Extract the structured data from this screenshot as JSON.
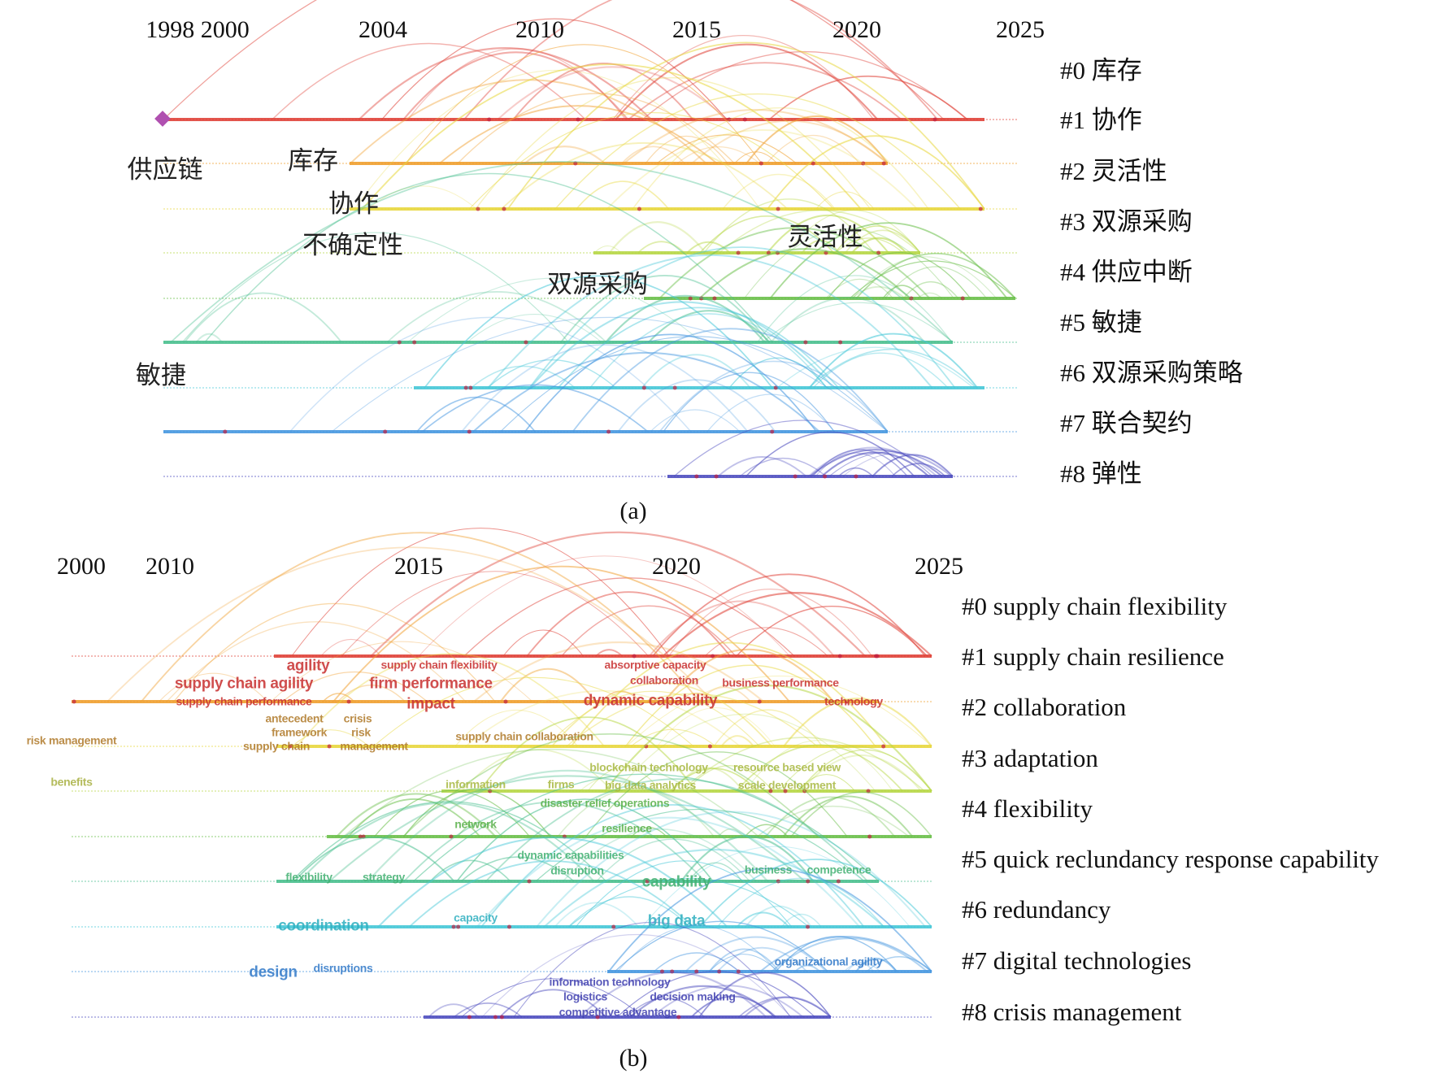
{
  "colors": [
    "#e0443a",
    "#f0a030",
    "#e8d840",
    "#b8d848",
    "#6cc04c",
    "#4cc090",
    "#48c8d8",
    "#4898e0",
    "#5050c0"
  ],
  "panel_a": {
    "caption": "(a)",
    "years": [
      "1998 2000",
      "2004",
      "2010",
      "2015",
      "2020",
      "2025"
    ],
    "clusters": [
      "#0 库存",
      "#1 协作",
      "#2 灵活性",
      "#3 双源采购",
      "#4 供应中断",
      "#5 敏捷",
      "#6 双源采购策略",
      "#7 联合契约",
      "#8 弹性"
    ],
    "keywords": [
      "供应链",
      "库存",
      "协作",
      "不确定性",
      "灵活性",
      "双源采购",
      "敏捷"
    ]
  },
  "panel_b": {
    "caption": "(b)",
    "years": [
      "2000",
      "2010",
      "2015",
      "2020",
      "2025"
    ],
    "clusters": [
      "#0 supply chain flexibility",
      "#1 supply chain resilience",
      "#2 collaboration",
      "#3 adaptation",
      "#4 flexibility",
      "#5 quick reclundancy response capability",
      "#6 redundancy",
      "#7 digital technologies",
      "#8 crisis management"
    ],
    "keywords": [
      "agility",
      "supply chain flexibility",
      "absorptive capacity",
      "collaboration",
      "supply chain agility",
      "firm performance",
      "supply chain performance",
      "impact",
      "dynamic capability",
      "business performance",
      "technology",
      "antecedent",
      "crisis",
      "framework",
      "risk",
      "supply chain",
      "management",
      "risk management",
      "supply chain collaboration",
      "benefits",
      "blockchain technology",
      "resource based view",
      "information",
      "firms",
      "big data analytics",
      "scale development",
      "disaster relief operations",
      "network",
      "resilience",
      "dynamic capabilities",
      "disruption",
      "flexibility",
      "strategy",
      "capability",
      "business",
      "competence",
      "coordination",
      "capacity",
      "big data",
      "design",
      "disruptions",
      "organizational agility",
      "information technology",
      "logistics",
      "decision making",
      "competitive advantage"
    ]
  }
}
